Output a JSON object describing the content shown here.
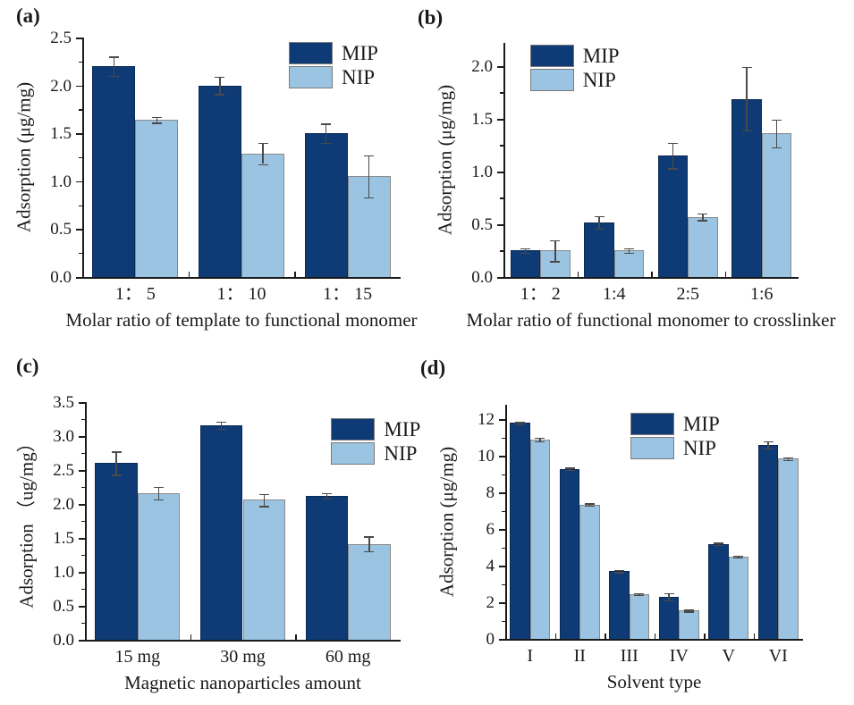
{
  "figure": {
    "description": "Four-panel bar chart comparing MIP and NIP adsorption",
    "background": "#ffffff"
  },
  "colors": {
    "mip_fill": "#0e3a75",
    "nip_fill": "#9ac4e2",
    "mip_border": "#0a2a55",
    "nip_border": "#8a8a8a",
    "error_bar": "#4a4a4a",
    "axis": "#1a1a1a",
    "text": "#1a1a1a"
  },
  "chart_data": [
    {
      "panel_label": "(a)",
      "type": "bar",
      "title": "",
      "xlabel": "Molar ratio of template to functional monomer",
      "ylabel": "Adsorption (μg/mg)",
      "categories": [
        "1： 5",
        "1： 10",
        "1： 15"
      ],
      "series": [
        {
          "name": "MIP",
          "values": [
            2.2,
            2.0,
            1.5
          ],
          "errors": [
            0.1,
            0.09,
            0.1
          ]
        },
        {
          "name": "NIP",
          "values": [
            1.64,
            1.29,
            1.05
          ],
          "errors": [
            0.03,
            0.11,
            0.22
          ]
        }
      ],
      "ylim": [
        0,
        2.5
      ],
      "ytick_step": 0.5,
      "ytick_decimals": 1,
      "legend_position": "top-right",
      "grid": false
    },
    {
      "panel_label": "(b)",
      "type": "bar",
      "title": "",
      "xlabel": "Molar ratio of functional monomer to crosslinker",
      "ylabel": "Adsorption (μg/mg)",
      "categories": [
        "1： 2",
        "1:4",
        "2:5",
        "1:6"
      ],
      "series": [
        {
          "name": "MIP",
          "values": [
            0.25,
            0.52,
            1.15,
            1.69
          ],
          "errors": [
            0.02,
            0.06,
            0.12,
            0.3
          ]
        },
        {
          "name": "NIP",
          "values": [
            0.25,
            0.25,
            0.57,
            1.36
          ],
          "errors": [
            0.1,
            0.02,
            0.03,
            0.13
          ]
        }
      ],
      "ylim": [
        0,
        2.22
      ],
      "ytick_step": 0.5,
      "ytick_decimals": 1,
      "legend_position": "top-left",
      "grid": false
    },
    {
      "panel_label": "(c)",
      "type": "bar",
      "title": "",
      "xlabel": "Magnetic nanoparticles amount",
      "ylabel": "Adsorption （ug/mg）",
      "categories": [
        "15 mg",
        "30 mg",
        "60 mg"
      ],
      "series": [
        {
          "name": "MIP",
          "values": [
            2.6,
            3.16,
            2.12
          ],
          "errors": [
            0.17,
            0.05,
            0.04
          ]
        },
        {
          "name": "NIP",
          "values": [
            2.16,
            2.06,
            1.41
          ],
          "errors": [
            0.09,
            0.09,
            0.11
          ]
        }
      ],
      "ylim": [
        0,
        3.5
      ],
      "ytick_step": 0.5,
      "ytick_decimals": 1,
      "legend_position": "top-right",
      "grid": false
    },
    {
      "panel_label": "(d)",
      "type": "bar",
      "title": "",
      "xlabel": "Solvent type",
      "ylabel": "Adsorption (μg/mg)",
      "categories": [
        "I",
        "II",
        "III",
        "IV",
        "V",
        "VI"
      ],
      "series": [
        {
          "name": "MIP",
          "values": [
            11.8,
            9.3,
            3.7,
            2.3,
            5.2,
            10.6
          ],
          "errors": [
            0.06,
            0.06,
            0.06,
            0.2,
            0.06,
            0.2
          ]
        },
        {
          "name": "NIP",
          "values": [
            10.9,
            7.35,
            2.45,
            1.55,
            4.5,
            9.85
          ],
          "errors": [
            0.1,
            0.06,
            0.06,
            0.05,
            0.06,
            0.06
          ]
        }
      ],
      "ylim": [
        0,
        12.8
      ],
      "ytick_step": 2,
      "ytick_decimals": 0,
      "legend_position": "top-center",
      "grid": false
    }
  ]
}
